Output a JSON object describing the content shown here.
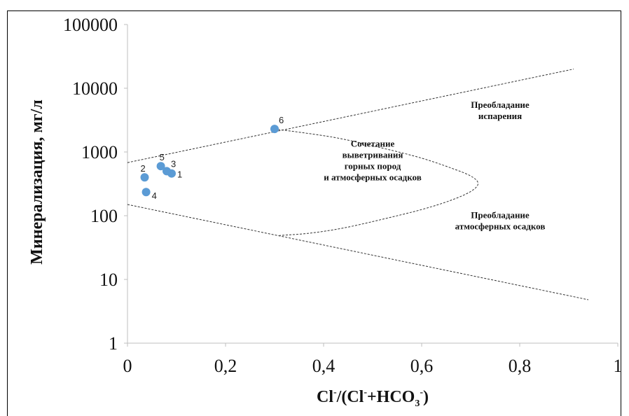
{
  "chart_data": {
    "type": "scatter",
    "title": "",
    "xlabel": "Cl-/(Cl-+HCO3-)",
    "xlabel_parts": {
      "a": "Cl",
      "b": "-",
      "c": "/(Cl",
      "d": "-",
      "e": "+HCO",
      "f": "3",
      "g": "-",
      "h": ")"
    },
    "ylabel": "Минерализация, мг/л",
    "xlim": [
      0,
      1
    ],
    "ylim": [
      1,
      100000
    ],
    "yscale": "log",
    "grid": false,
    "x_ticks": [
      {
        "value": 0,
        "label": "0"
      },
      {
        "value": 0.2,
        "label": "0,2"
      },
      {
        "value": 0.4,
        "label": "0,4"
      },
      {
        "value": 0.6,
        "label": "0,6"
      },
      {
        "value": 0.8,
        "label": "0,8"
      },
      {
        "value": 1,
        "label": "1"
      }
    ],
    "y_ticks": [
      {
        "value": 1,
        "label": "1"
      },
      {
        "value": 10,
        "label": "10"
      },
      {
        "value": 100,
        "label": "100"
      },
      {
        "value": 1000,
        "label": "1000"
      },
      {
        "value": 10000,
        "label": "10000"
      },
      {
        "value": 100000,
        "label": "100000"
      }
    ],
    "points": [
      {
        "label": "1",
        "x": 0.09,
        "y": 460,
        "color": "#5b9bd5"
      },
      {
        "label": "2",
        "x": 0.035,
        "y": 400,
        "color": "#5b9bd5"
      },
      {
        "label": "3",
        "x": 0.08,
        "y": 500,
        "color": "#5b9bd5"
      },
      {
        "label": "4",
        "x": 0.038,
        "y": 235,
        "color": "#5b9bd5"
      },
      {
        "label": "5",
        "x": 0.068,
        "y": 600,
        "color": "#5b9bd5"
      },
      {
        "label": "6",
        "x": 0.3,
        "y": 2300,
        "color": "#5b9bd5"
      }
    ],
    "boundaries": [
      {
        "name": "upper",
        "points": [
          [
            0,
            680
          ],
          [
            0.91,
            20000
          ]
        ]
      },
      {
        "name": "lower",
        "points": [
          [
            0,
            150
          ],
          [
            0.94,
            4.8
          ]
        ]
      },
      {
        "name": "boomerang",
        "points": [
          [
            0.3,
            2300
          ],
          [
            0.42,
            1700
          ],
          [
            0.52,
            1150
          ],
          [
            0.6,
            800
          ],
          [
            0.66,
            560
          ],
          [
            0.7,
            420
          ],
          [
            0.715,
            320
          ],
          [
            0.7,
            240
          ],
          [
            0.66,
            175
          ],
          [
            0.6,
            125
          ],
          [
            0.52,
            88
          ],
          [
            0.44,
            64
          ],
          [
            0.37,
            53
          ],
          [
            0.31,
            49
          ]
        ]
      }
    ],
    "annotations": [
      {
        "lines": [
          "Преобладание",
          "испарения"
        ],
        "x": 0.76,
        "y": 4000
      },
      {
        "lines": [
          "Сочетание",
          "выветривания",
          "горных пород",
          "и атмосферных осадков"
        ],
        "x": 0.5,
        "y": 660
      },
      {
        "lines": [
          "Преобладание",
          "атмосферных осадков"
        ],
        "x": 0.76,
        "y": 75
      }
    ],
    "colors": {
      "point": "#5b9bd5",
      "line": "#333333",
      "axis": "#bfbfbf",
      "frame": "#000000"
    }
  }
}
